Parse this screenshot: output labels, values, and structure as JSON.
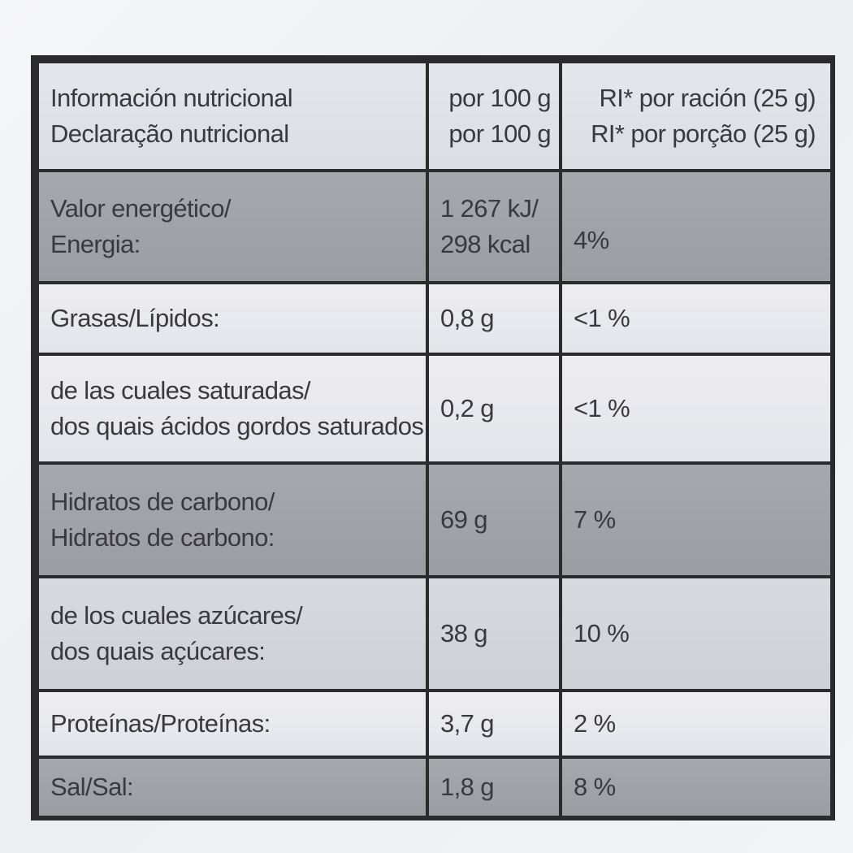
{
  "table": {
    "header": {
      "label_es": "Información nutricional",
      "label_pt": "Declaração nutricional",
      "col2_es": "por 100 g",
      "col2_pt": "por 100 g",
      "col3_es": "RI* por ración (25 g)",
      "col3_pt": "RI* por porção (25 g)"
    },
    "rows": [
      {
        "label_1": "Valor energético/",
        "label_2": "Energia:",
        "value_1": "1 267 kJ/",
        "value_2": "298 kcal",
        "ri": "4%"
      },
      {
        "label_1": "Grasas/Lípidos:",
        "value_1": "0,8 g",
        "ri": "<1 %"
      },
      {
        "label_1": "de las cuales saturadas/",
        "label_2": "dos quais ácidos gordos saturados:",
        "value_1": "0,2 g",
        "ri": "<1 %"
      },
      {
        "label_1": "Hidratos de carbono/",
        "label_2": "Hidratos de carbono:",
        "value_1": "69 g",
        "ri": "7 %"
      },
      {
        "label_1": "de los cuales azúcares/",
        "label_2": "dos quais açúcares:",
        "value_1": "38 g",
        "ri": "10 %"
      },
      {
        "label_1": "Proteínas/Proteínas:",
        "value_1": "3,7 g",
        "ri": "2 %"
      },
      {
        "label_1": "Sal/Sal:",
        "value_1": "1,8 g",
        "ri": "8 %"
      }
    ]
  }
}
